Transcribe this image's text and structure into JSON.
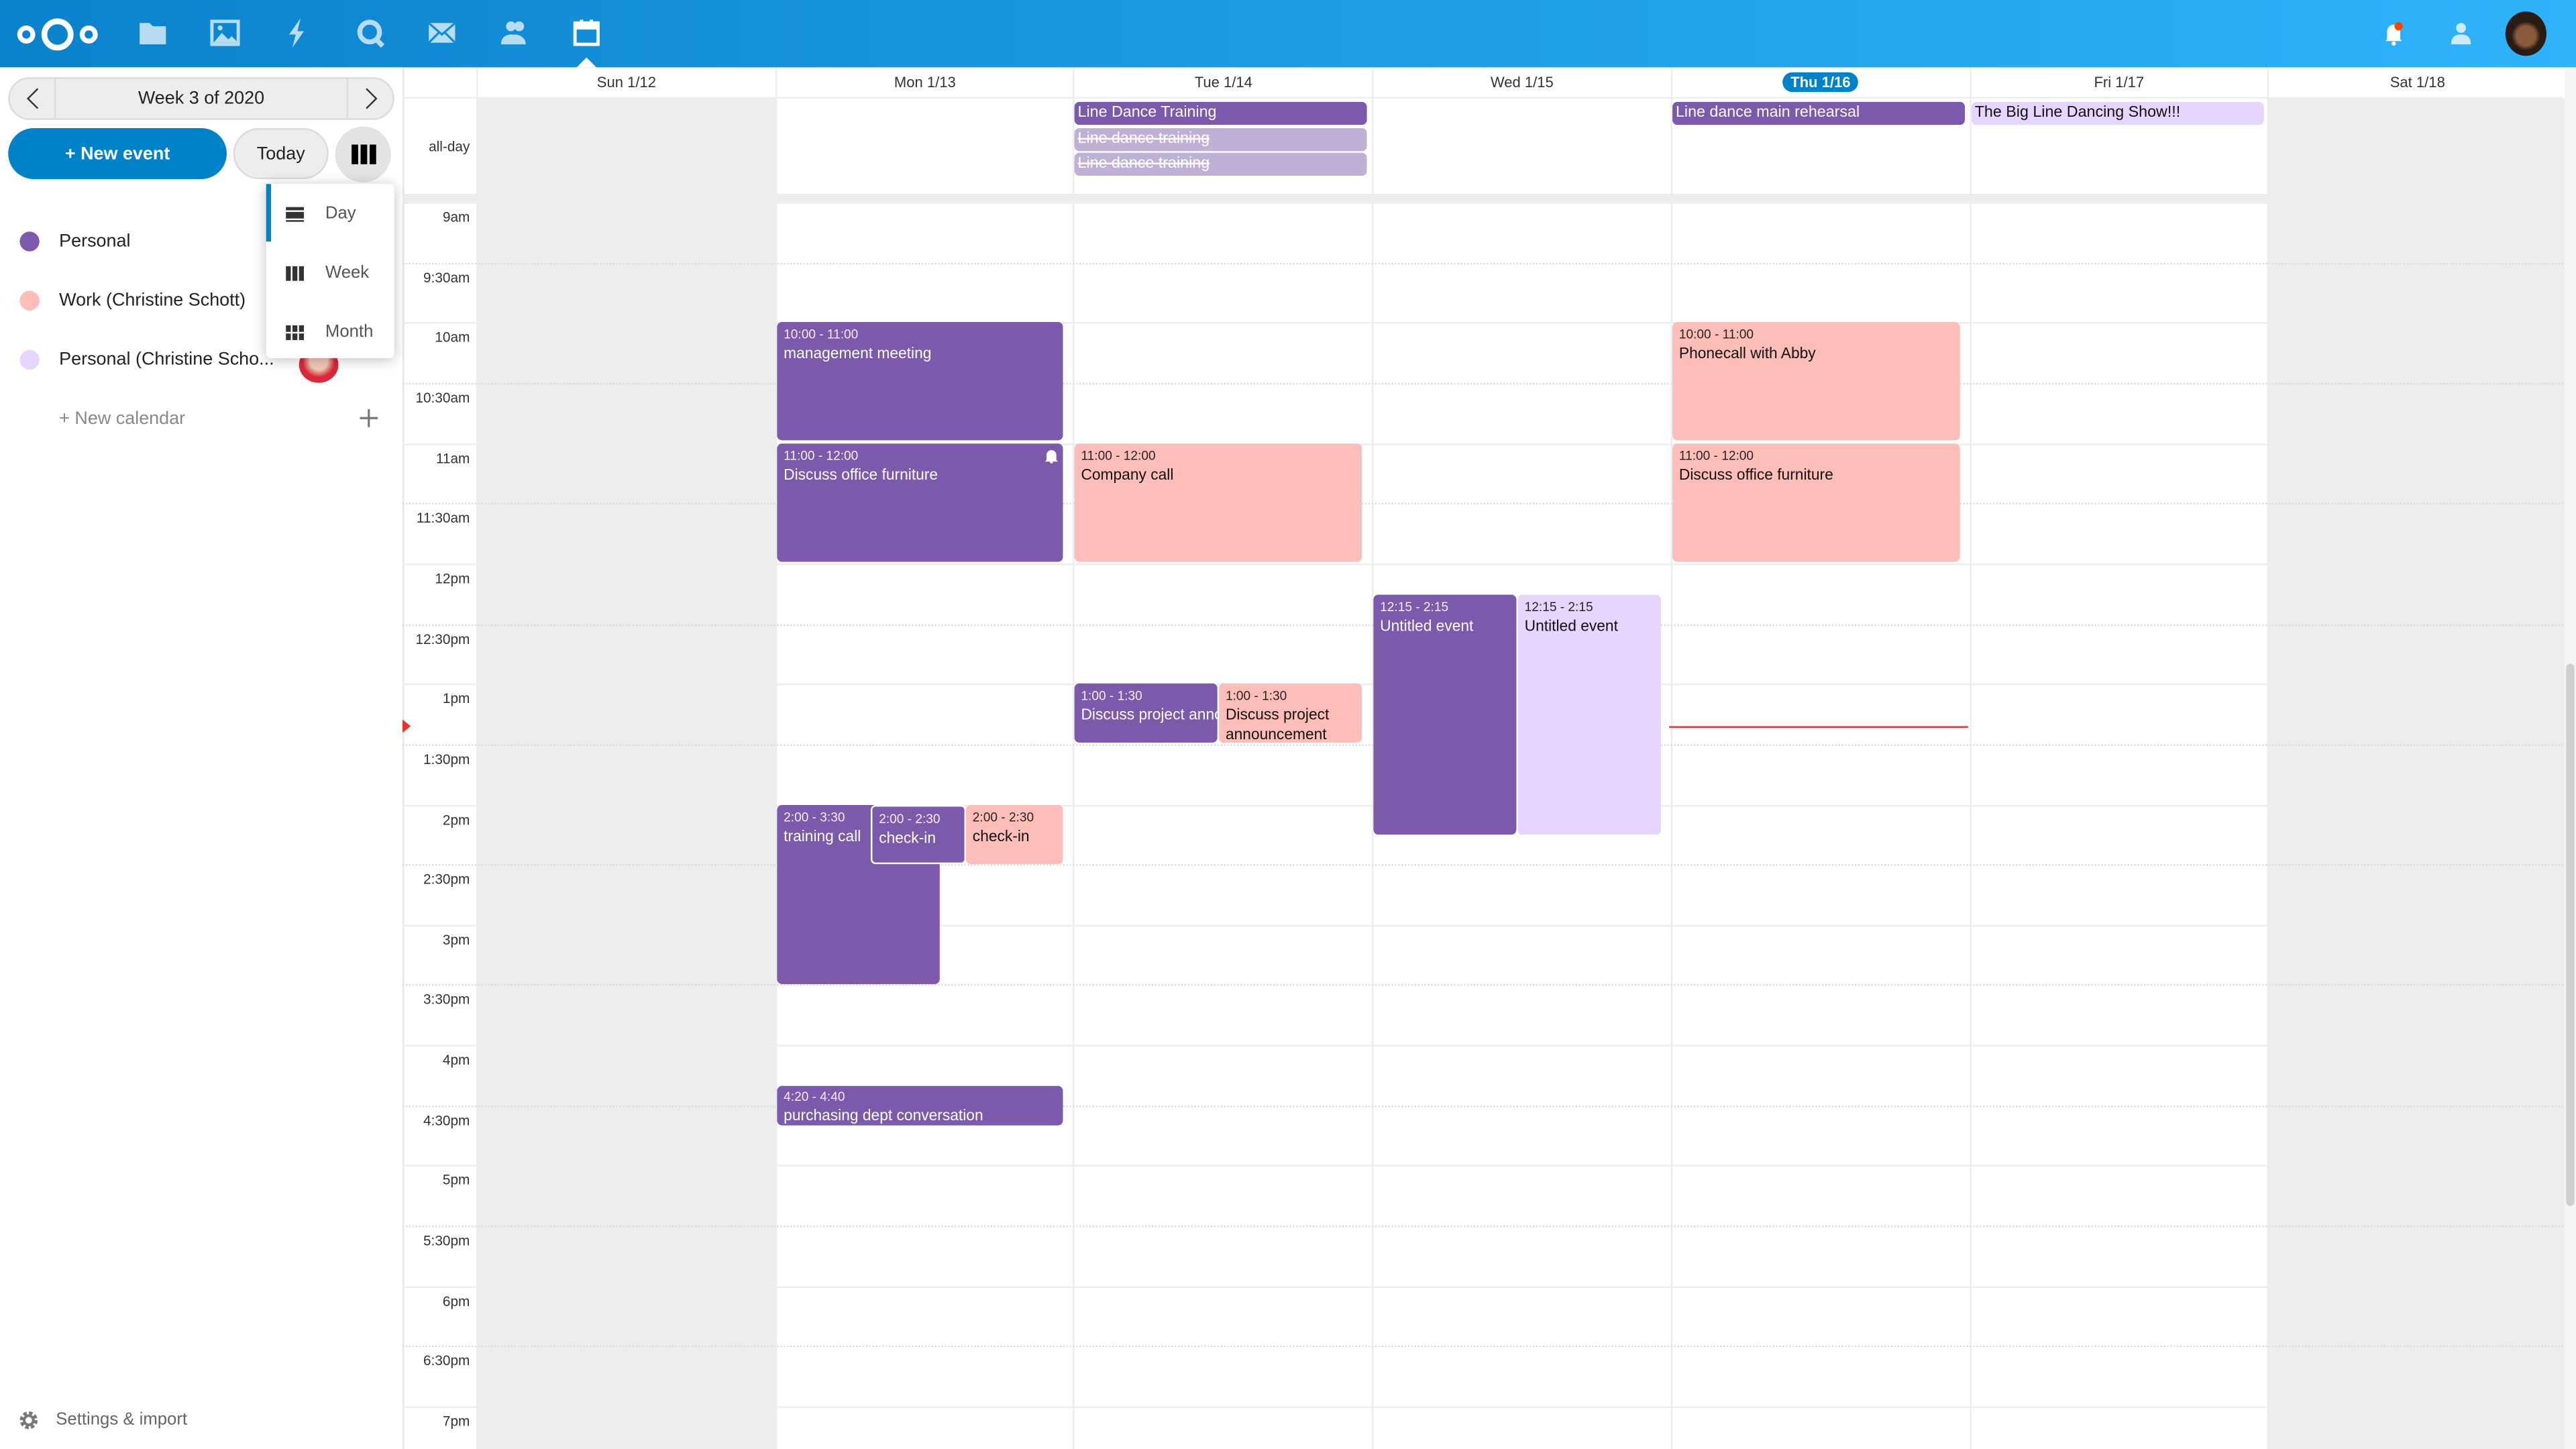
{
  "header": {
    "apps": [
      "files-icon",
      "photos-icon",
      "activity-icon",
      "talk-icon",
      "mail-icon",
      "contacts-icon",
      "calendar-icon"
    ],
    "active_app": "calendar",
    "right_icons": [
      "notifications-icon",
      "contacts-menu-icon",
      "user-avatar"
    ],
    "colors": {
      "gradient_start": "#0a82cc",
      "gradient_end": "#2fb3fb",
      "notification_dot": "#ff4402"
    }
  },
  "sidebar": {
    "week_label": "Week 3 of 2020",
    "new_event": "+ New event",
    "today": "Today",
    "view_menu": {
      "items": [
        "Day",
        "Week",
        "Month"
      ],
      "highlighted": "Day"
    },
    "calendars": [
      {
        "name": "Personal",
        "color": "#7b5aab"
      },
      {
        "name": "Work (Christine Schott)",
        "color": "#fdbdb8"
      },
      {
        "name": "Personal (Christine Scho...",
        "color": "#e6d5ff",
        "shared": true,
        "more": "•••"
      }
    ],
    "new_calendar": "+ New calendar",
    "settings": "Settings & import"
  },
  "calendar": {
    "allday_label": "all-day",
    "days": [
      "Sun 1/12",
      "Mon 1/13",
      "Tue 1/14",
      "Wed 1/15",
      "Thu 1/16",
      "Fri 1/17",
      "Sat 1/18"
    ],
    "today": "Thu 1/16",
    "times": [
      "9am",
      "9:30am",
      "10am",
      "10:30am",
      "11am",
      "11:30am",
      "12pm",
      "12:30pm",
      "1pm",
      "1:30pm",
      "2pm",
      "2:30pm",
      "3pm",
      "3:30pm",
      "4pm",
      "4:30pm",
      "5pm",
      "5:30pm",
      "6pm",
      "6:30pm",
      "7pm"
    ],
    "allday_events": [
      {
        "day": "Tue 1/14",
        "title": "Line Dance Training",
        "calendar": "Personal"
      },
      {
        "day": "Tue 1/14",
        "title": "Line dance training",
        "calendar": "Personal",
        "cancelled": true
      },
      {
        "day": "Tue 1/14",
        "title": "Line dance training",
        "calendar": "Personal",
        "cancelled": true
      },
      {
        "day": "Thu 1/16",
        "title": "Line dance main rehearsal",
        "calendar": "Personal"
      },
      {
        "day": "Fri 1/17",
        "title": "The Big Line Dancing Show!!!",
        "calendar": "Personal (Christine Schott)"
      }
    ],
    "events": [
      {
        "day": "Mon 1/13",
        "time": "10:00 - 11:00",
        "title": "management meeting",
        "calendar": "Personal"
      },
      {
        "day": "Mon 1/13",
        "time": "11:00 - 12:00",
        "title": "Discuss office furniture",
        "calendar": "Personal",
        "reminder": true
      },
      {
        "day": "Mon 1/13",
        "time": "2:00 - 3:30",
        "title": "training call",
        "calendar": "Personal"
      },
      {
        "day": "Mon 1/13",
        "time": "2:00 - 2:30",
        "title": "check-in",
        "calendar": "Personal"
      },
      {
        "day": "Mon 1/13",
        "time": "2:00 - 2:30",
        "title": "check-in",
        "calendar": "Work (Christine Schott)"
      },
      {
        "day": "Mon 1/13",
        "time": "4:20 - 4:40",
        "title": "purchasing dept conversation",
        "calendar": "Personal"
      },
      {
        "day": "Tue 1/14",
        "time": "11:00 - 12:00",
        "title": "Company call",
        "calendar": "Work (Christine Schott)"
      },
      {
        "day": "Tue 1/14",
        "time": "1:00 - 1:30",
        "title": "Discuss project announcement",
        "calendar": "Personal"
      },
      {
        "day": "Tue 1/14",
        "time": "1:00 - 1:30",
        "title": "Discuss project announcement",
        "calendar": "Work (Christine Schott)"
      },
      {
        "day": "Wed 1/15",
        "time": "12:15 - 2:15",
        "title": "Untitled event",
        "calendar": "Personal"
      },
      {
        "day": "Wed 1/15",
        "time": "12:15 - 2:15",
        "title": "Untitled event",
        "calendar": "Personal (Christine Schott)"
      },
      {
        "day": "Thu 1/16",
        "time": "10:00 - 11:00",
        "title": "Phonecall with Abby",
        "calendar": "Work (Christine Schott)"
      },
      {
        "day": "Thu 1/16",
        "time": "11:00 - 12:00",
        "title": "Discuss office furniture",
        "calendar": "Work (Christine Schott)"
      }
    ],
    "now_indicator_color": "#e9322d"
  }
}
